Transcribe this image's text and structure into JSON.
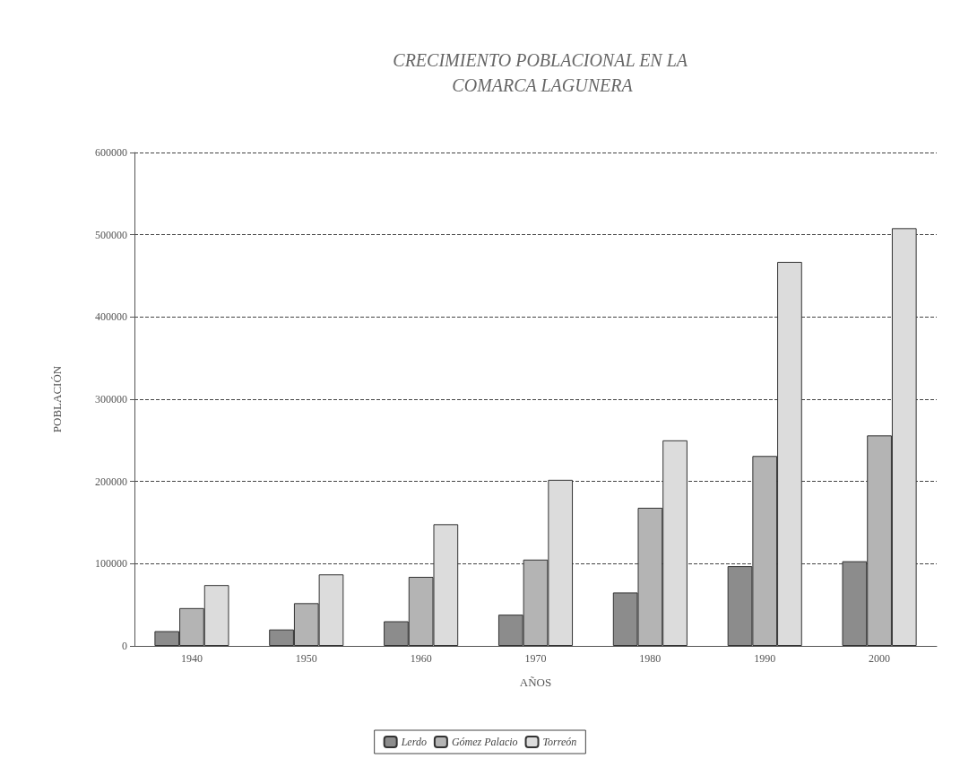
{
  "chart_data": {
    "type": "bar",
    "title": "CRECIMIENTO POBLACIONAL EN LA COMARCA LAGUNERA",
    "xlabel": "AÑOS",
    "ylabel": "POBLACIÓN",
    "categories": [
      "1940",
      "1950",
      "1960",
      "1970",
      "1980",
      "1990",
      "2000"
    ],
    "series": [
      {
        "name": "Lerdo",
        "color": "#8c8c8c",
        "values": [
          18000,
          20000,
          30000,
          38000,
          65000,
          97000,
          103000
        ]
      },
      {
        "name": "Gómez Palacio",
        "color": "#b4b4b4",
        "values": [
          46000,
          52000,
          84000,
          105000,
          168000,
          231000,
          256000
        ]
      },
      {
        "name": "Torreón",
        "color": "#dcdcdc",
        "values": [
          74000,
          87000,
          148000,
          202000,
          250000,
          467000,
          508000
        ]
      }
    ],
    "ylim": [
      0,
      600000
    ],
    "yticks": [
      0,
      100000,
      200000,
      300000,
      400000,
      500000,
      600000
    ],
    "grid": "y",
    "legend": "bottom"
  }
}
